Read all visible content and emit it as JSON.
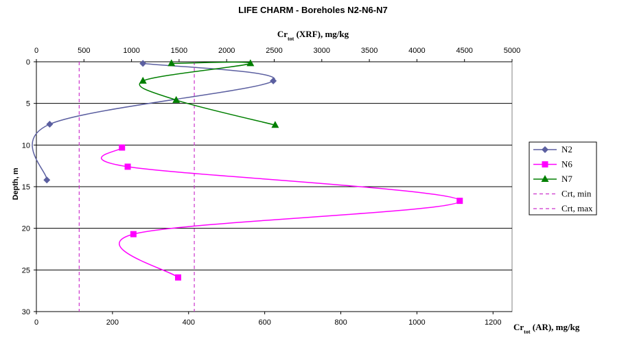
{
  "chart_data": {
    "type": "line",
    "title": "LIFE CHARM - Boreholes N2-N6-N7",
    "top_axis": {
      "label_main": "Cr",
      "label_sub": "tot",
      "label_rest": " (XRF), mg/kg",
      "range": [
        0,
        5000
      ],
      "ticks": [
        "0",
        "500",
        "1000",
        "1500",
        "2000",
        "2500",
        "3000",
        "3500",
        "4000",
        "4500",
        "5000"
      ]
    },
    "bottom_axis": {
      "label_main": "Cr",
      "label_sub": "tot",
      "label_rest": " (AR), mg/kg",
      "range": [
        0,
        1250
      ],
      "ticks": [
        "0",
        "200",
        "400",
        "600",
        "800",
        "1000",
        "1200"
      ]
    },
    "y_axis": {
      "label": "Depth, m",
      "range": [
        0,
        30
      ],
      "inverted": true,
      "ticks": [
        "0",
        "5",
        "10",
        "15",
        "20",
        "25",
        "30"
      ]
    },
    "grid": "horizontal",
    "legend_position": "right",
    "series": [
      {
        "name": "N2",
        "axis": "top",
        "color": "#5B5FA0",
        "marker": "diamond",
        "points": [
          [
            1120,
            0.2
          ],
          [
            2490,
            2.3
          ],
          [
            140,
            7.5
          ],
          [
            110,
            14.2
          ]
        ]
      },
      {
        "name": "N6",
        "axis": "top",
        "color": "#FF00FF",
        "marker": "square",
        "points": [
          [
            900,
            10.3
          ],
          [
            960,
            12.6
          ],
          [
            4450,
            16.7
          ],
          [
            1020,
            20.7
          ],
          [
            1490,
            25.9
          ]
        ]
      },
      {
        "name": "N7",
        "axis": "top",
        "color": "#007F00",
        "marker": "triangle",
        "points": [
          [
            1420,
            0.2
          ],
          [
            2250,
            0.2
          ],
          [
            1120,
            2.3
          ],
          [
            1470,
            4.6
          ],
          [
            2510,
            7.6
          ]
        ]
      }
    ],
    "reference_lines": [
      {
        "name": "Crt, min",
        "axis": "top",
        "value": 450,
        "color": "#CC33CC"
      },
      {
        "name": "Crt, max",
        "axis": "top",
        "value": 1660,
        "color": "#CC33CC"
      }
    ]
  }
}
